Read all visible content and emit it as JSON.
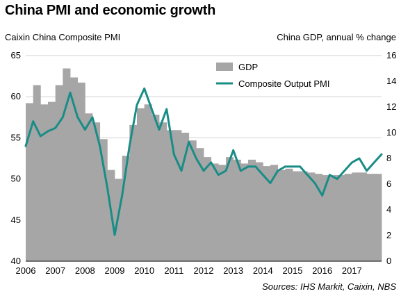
{
  "title": "China PMI and economic growth",
  "source": "Sources: IHS Markit, Caixin, NBS",
  "chart_data": {
    "type": "bar",
    "ylabel_left": "Caixin China Composite PMI",
    "ylabel_right": "China GDP, annual % change",
    "xlim": [
      2006,
      2018
    ],
    "ylim_left": [
      40,
      65
    ],
    "ylim_right": [
      0,
      16
    ],
    "yticks_left": [
      40,
      45,
      50,
      55,
      60,
      65
    ],
    "yticks_right": [
      0,
      2,
      4,
      6,
      8,
      10,
      12,
      14,
      16
    ],
    "xtick_labels": [
      "2006",
      "2007",
      "2008",
      "2009",
      "2010",
      "2011",
      "2012",
      "2013",
      "2014",
      "2015",
      "2016",
      "2017"
    ],
    "grid": true,
    "legend_position": "top-center",
    "series": [
      {
        "name": "GDP",
        "kind": "bar",
        "axis": "right",
        "color": "#a6a6a6",
        "values": [
          {
            "x": 2006.0,
            "y": 12.3
          },
          {
            "x": 2006.25,
            "y": 13.7
          },
          {
            "x": 2006.5,
            "y": 12.2
          },
          {
            "x": 2006.75,
            "y": 12.4
          },
          {
            "x": 2007.0,
            "y": 13.7
          },
          {
            "x": 2007.25,
            "y": 15.0
          },
          {
            "x": 2007.5,
            "y": 14.3
          },
          {
            "x": 2007.75,
            "y": 13.9
          },
          {
            "x": 2008.0,
            "y": 11.5
          },
          {
            "x": 2008.25,
            "y": 10.8
          },
          {
            "x": 2008.5,
            "y": 9.5
          },
          {
            "x": 2008.75,
            "y": 7.1
          },
          {
            "x": 2009.0,
            "y": 6.4
          },
          {
            "x": 2009.25,
            "y": 8.2
          },
          {
            "x": 2009.5,
            "y": 10.6
          },
          {
            "x": 2009.75,
            "y": 11.9
          },
          {
            "x": 2010.0,
            "y": 12.2
          },
          {
            "x": 2010.25,
            "y": 11.4
          },
          {
            "x": 2010.5,
            "y": 10.8
          },
          {
            "x": 2010.75,
            "y": 10.2
          },
          {
            "x": 2011.0,
            "y": 10.2
          },
          {
            "x": 2011.25,
            "y": 10.0
          },
          {
            "x": 2011.5,
            "y": 9.4
          },
          {
            "x": 2011.75,
            "y": 8.8
          },
          {
            "x": 2012.0,
            "y": 8.1
          },
          {
            "x": 2012.25,
            "y": 7.6
          },
          {
            "x": 2012.5,
            "y": 7.5
          },
          {
            "x": 2012.75,
            "y": 8.1
          },
          {
            "x": 2013.0,
            "y": 7.9
          },
          {
            "x": 2013.25,
            "y": 7.6
          },
          {
            "x": 2013.5,
            "y": 7.9
          },
          {
            "x": 2013.75,
            "y": 7.7
          },
          {
            "x": 2014.0,
            "y": 7.4
          },
          {
            "x": 2014.25,
            "y": 7.5
          },
          {
            "x": 2014.5,
            "y": 7.1
          },
          {
            "x": 2014.75,
            "y": 7.2
          },
          {
            "x": 2015.0,
            "y": 7.0
          },
          {
            "x": 2015.25,
            "y": 7.0
          },
          {
            "x": 2015.5,
            "y": 6.9
          },
          {
            "x": 2015.75,
            "y": 6.8
          },
          {
            "x": 2016.0,
            "y": 6.7
          },
          {
            "x": 2016.25,
            "y": 6.7
          },
          {
            "x": 2016.5,
            "y": 6.7
          },
          {
            "x": 2016.75,
            "y": 6.8
          },
          {
            "x": 2017.0,
            "y": 6.9
          },
          {
            "x": 2017.25,
            "y": 6.9
          },
          {
            "x": 2017.5,
            "y": 6.8
          },
          {
            "x": 2017.75,
            "y": 6.8
          }
        ]
      },
      {
        "name": "Composite Output PMI",
        "kind": "line",
        "axis": "left",
        "color": "#1a8c86",
        "values": [
          {
            "x": 2006.0,
            "y": 54.0
          },
          {
            "x": 2006.25,
            "y": 57.0
          },
          {
            "x": 2006.5,
            "y": 55.2
          },
          {
            "x": 2006.75,
            "y": 55.8
          },
          {
            "x": 2007.0,
            "y": 56.2
          },
          {
            "x": 2007.25,
            "y": 57.5
          },
          {
            "x": 2007.5,
            "y": 60.5
          },
          {
            "x": 2007.75,
            "y": 57.5
          },
          {
            "x": 2008.0,
            "y": 56.0
          },
          {
            "x": 2008.25,
            "y": 57.5
          },
          {
            "x": 2008.5,
            "y": 54.0
          },
          {
            "x": 2008.75,
            "y": 49.0
          },
          {
            "x": 2009.0,
            "y": 43.2
          },
          {
            "x": 2009.25,
            "y": 48.0
          },
          {
            "x": 2009.5,
            "y": 54.0
          },
          {
            "x": 2009.75,
            "y": 59.0
          },
          {
            "x": 2010.0,
            "y": 61.0
          },
          {
            "x": 2010.25,
            "y": 58.5
          },
          {
            "x": 2010.5,
            "y": 56.0
          },
          {
            "x": 2010.75,
            "y": 58.5
          },
          {
            "x": 2011.0,
            "y": 53.0
          },
          {
            "x": 2011.25,
            "y": 51.0
          },
          {
            "x": 2011.5,
            "y": 54.5
          },
          {
            "x": 2011.75,
            "y": 52.5
          },
          {
            "x": 2012.0,
            "y": 51.0
          },
          {
            "x": 2012.25,
            "y": 52.0
          },
          {
            "x": 2012.5,
            "y": 50.5
          },
          {
            "x": 2012.75,
            "y": 51.0
          },
          {
            "x": 2013.0,
            "y": 53.5
          },
          {
            "x": 2013.25,
            "y": 51.0
          },
          {
            "x": 2013.5,
            "y": 51.5
          },
          {
            "x": 2013.75,
            "y": 51.5
          },
          {
            "x": 2014.0,
            "y": 50.5
          },
          {
            "x": 2014.25,
            "y": 49.5
          },
          {
            "x": 2014.5,
            "y": 51.0
          },
          {
            "x": 2014.75,
            "y": 51.5
          },
          {
            "x": 2015.0,
            "y": 51.5
          },
          {
            "x": 2015.25,
            "y": 51.5
          },
          {
            "x": 2015.5,
            "y": 50.5
          },
          {
            "x": 2015.75,
            "y": 49.5
          },
          {
            "x": 2016.0,
            "y": 48.0
          },
          {
            "x": 2016.25,
            "y": 50.5
          },
          {
            "x": 2016.5,
            "y": 50.0
          },
          {
            "x": 2016.75,
            "y": 51.0
          },
          {
            "x": 2017.0,
            "y": 52.0
          },
          {
            "x": 2017.25,
            "y": 52.5
          },
          {
            "x": 2017.5,
            "y": 51.0
          },
          {
            "x": 2017.75,
            "y": 52.0
          },
          {
            "x": 2018.0,
            "y": 53.0
          }
        ]
      }
    ]
  }
}
